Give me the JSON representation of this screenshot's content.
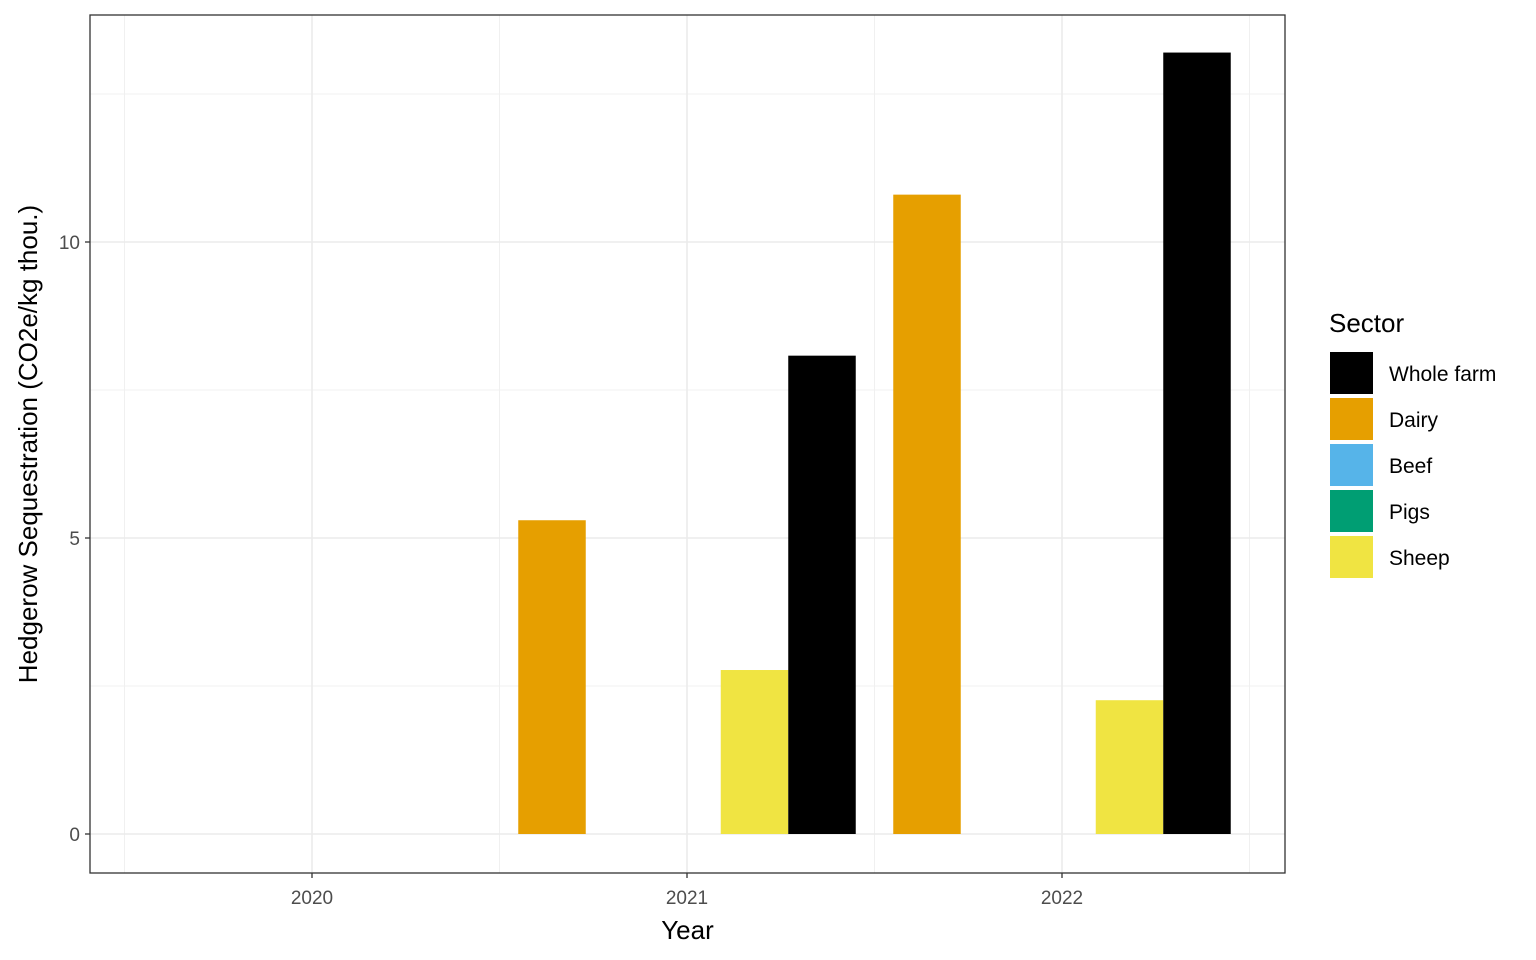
{
  "chart_data": {
    "type": "bar",
    "xlabel": "Year",
    "ylabel": "Hedgerow Sequestration (CO2e/kg thou.)",
    "categories": [
      "2020",
      "2021",
      "2022"
    ],
    "ylim": [
      0,
      13.2
    ],
    "yticks": [
      0,
      5,
      10
    ],
    "grid": true,
    "legend": {
      "title": "Sector",
      "placement": "right",
      "entries": [
        "Whole farm",
        "Dairy",
        "Beef",
        "Pigs",
        "Sheep"
      ]
    },
    "series": [
      {
        "name": "Dairy",
        "color": "#E69F00",
        "values": [
          0,
          5.3,
          10.8
        ]
      },
      {
        "name": "Beef",
        "color": "#56B4E9",
        "values": [
          0,
          0,
          0
        ]
      },
      {
        "name": "Pigs",
        "color": "#009E73",
        "values": [
          0,
          0,
          0
        ]
      },
      {
        "name": "Sheep",
        "color": "#F0E442",
        "values": [
          0,
          2.77,
          2.26
        ]
      },
      {
        "name": "Whole farm",
        "color": "#000000",
        "values": [
          0,
          8.08,
          13.2
        ]
      }
    ],
    "legend_colors": {
      "Whole farm": "#000000",
      "Dairy": "#E69F00",
      "Beef": "#56B4E9",
      "Pigs": "#009E73",
      "Sheep": "#F0E442"
    }
  }
}
